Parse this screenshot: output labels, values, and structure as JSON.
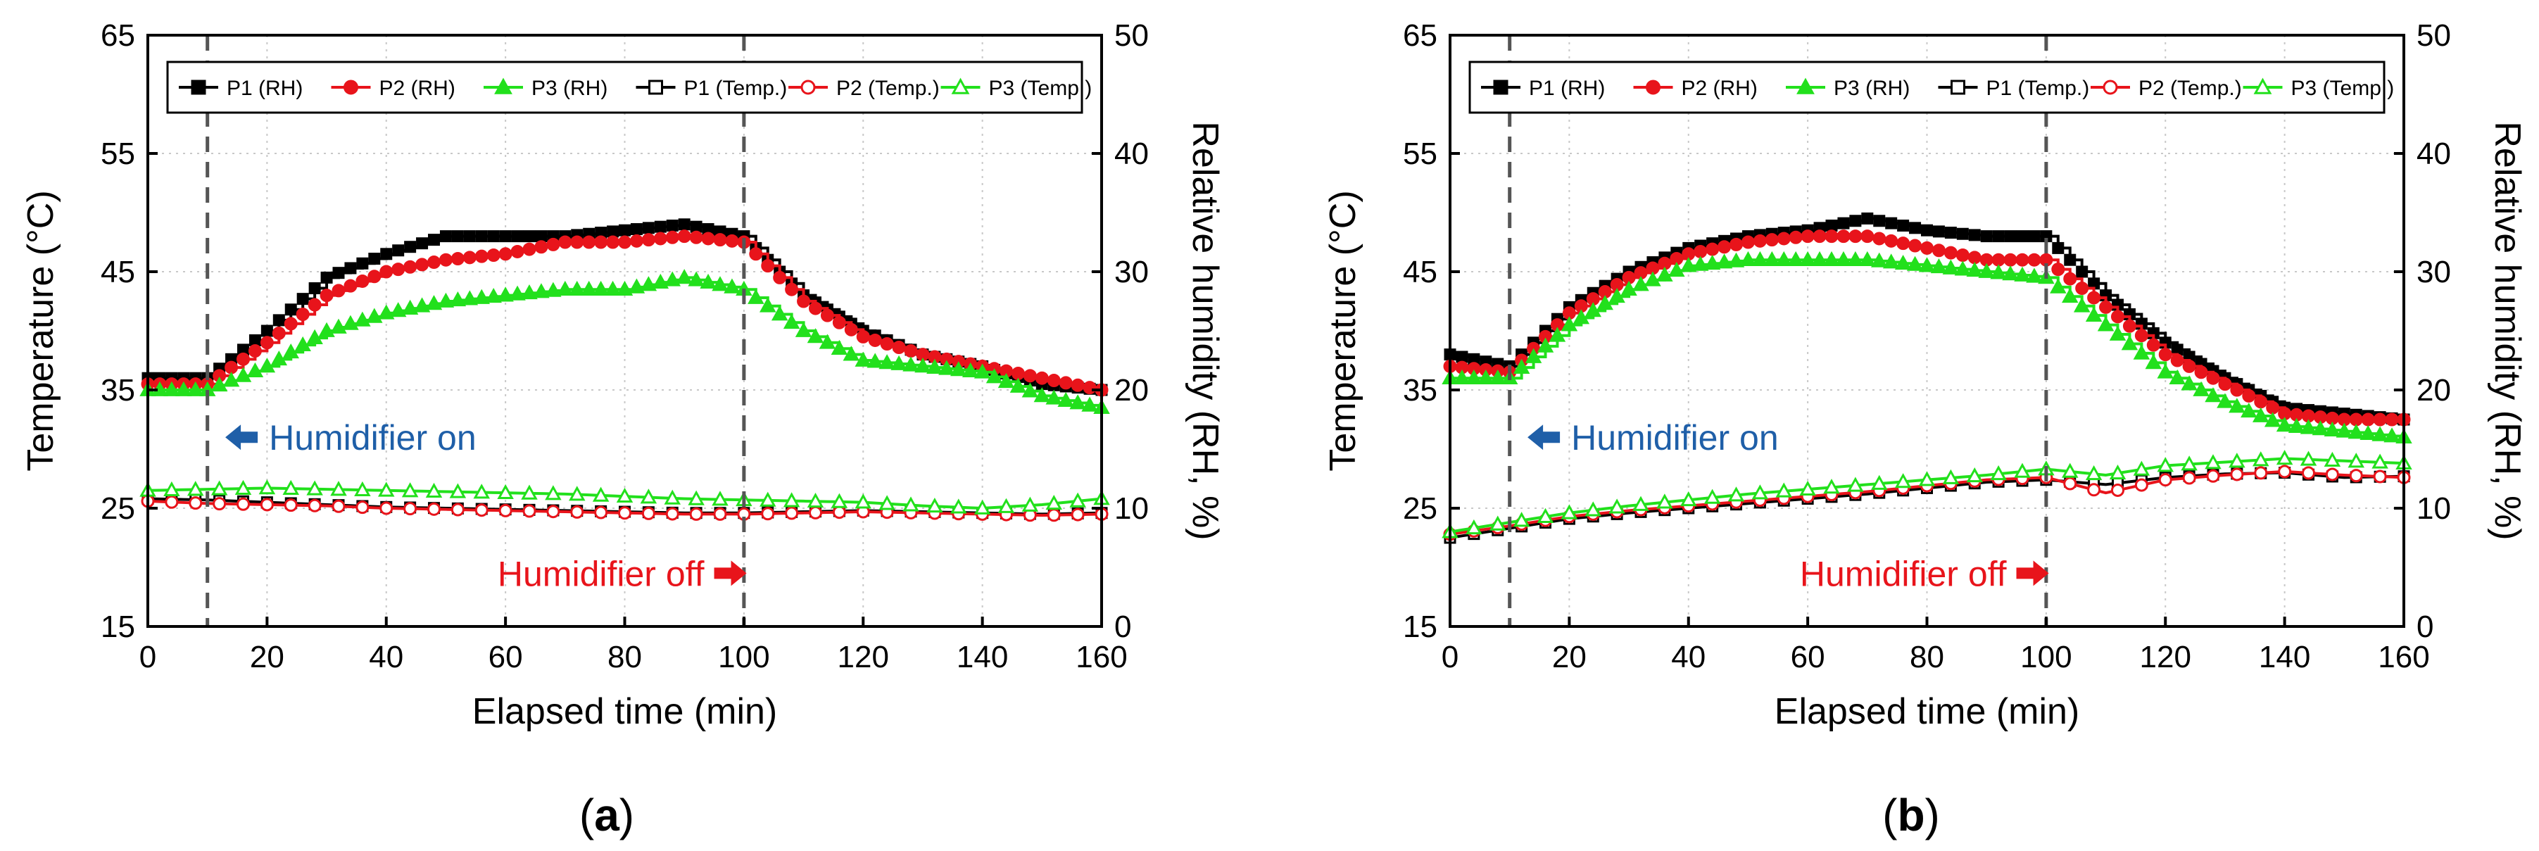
{
  "figure": {
    "captions": [
      "(",
      "a",
      ")",
      "(",
      "b",
      ")"
    ]
  },
  "chart_data": [
    {
      "type": "line",
      "panel": "(a)",
      "xlabel": "Elapsed time (min)",
      "ylabel_left": "Temperature (°C)",
      "ylabel_right": "Relative humidity (RH, %)",
      "xlim": [
        0,
        160
      ],
      "ylim_left": [
        15,
        65
      ],
      "ylim_right": [
        0,
        50
      ],
      "xticks": [
        0,
        20,
        40,
        60,
        80,
        100,
        120,
        140,
        160
      ],
      "yticks_left": [
        15,
        25,
        35,
        45,
        55,
        65
      ],
      "yticks_right": [
        0,
        10,
        20,
        30,
        40,
        50
      ],
      "grid": true,
      "legend": [
        "P1 (RH)",
        "P2 (RH)",
        "P3 (RH)",
        "P1 (Temp.)",
        "P2 (Temp.)",
        "P3 (Temp.)"
      ],
      "vlines": [
        10,
        100
      ],
      "annotations": [
        {
          "text": "Humidifier on",
          "arrow": "left",
          "x": 13,
          "y_temp": 31,
          "color": "#1f5fa8"
        },
        {
          "text": "Humidifier off",
          "arrow": "right",
          "x": 95,
          "y_temp": 19.5,
          "color": "#e8141b"
        }
      ],
      "x": [
        0,
        10,
        20,
        30,
        40,
        50,
        60,
        70,
        80,
        90,
        100,
        110,
        120,
        130,
        140,
        150,
        160
      ],
      "series": [
        {
          "name": "P1 (RH)",
          "axis": "right",
          "color": "#000000",
          "marker": "square",
          "fill": true,
          "step": true,
          "values": [
            21,
            21,
            25,
            29.5,
            31.5,
            33,
            33,
            33,
            33.5,
            34,
            33,
            28,
            25,
            23,
            22,
            20.5,
            20
          ]
        },
        {
          "name": "P2 (RH)",
          "axis": "right",
          "color": "#e8141b",
          "marker": "circle",
          "fill": true,
          "step": true,
          "values": [
            20.5,
            20.5,
            24,
            28,
            30,
            31,
            31.5,
            32.5,
            32.5,
            33,
            32.5,
            27.5,
            24.5,
            23,
            22,
            21,
            20
          ]
        },
        {
          "name": "P3 (RH)",
          "axis": "right",
          "color": "#22e01c",
          "marker": "triangle",
          "fill": true,
          "step": true,
          "values": [
            20,
            20,
            22,
            25,
            26.5,
            27.5,
            28,
            28.5,
            28.5,
            29.5,
            28.5,
            25,
            22.5,
            22,
            21.5,
            19.5,
            18.5
          ]
        },
        {
          "name": "P1 (Temp.)",
          "axis": "left",
          "color": "#000000",
          "marker": "square",
          "fill": false,
          "step": false,
          "values": [
            25.8,
            25.7,
            25.5,
            25.3,
            25.1,
            25.0,
            24.9,
            24.8,
            24.7,
            24.6,
            24.6,
            24.7,
            24.8,
            24.7,
            24.6,
            24.5,
            24.6
          ]
        },
        {
          "name": "P2 (Temp.)",
          "axis": "left",
          "color": "#e8141b",
          "marker": "circle",
          "fill": false,
          "step": false,
          "values": [
            25.6,
            25.4,
            25.3,
            25.2,
            25.0,
            24.9,
            24.8,
            24.7,
            24.6,
            24.5,
            24.5,
            24.6,
            24.7,
            24.6,
            24.5,
            24.4,
            24.5
          ]
        },
        {
          "name": "P3 (Temp.)",
          "axis": "left",
          "color": "#22e01c",
          "marker": "triangle",
          "fill": false,
          "step": false,
          "values": [
            26.5,
            26.6,
            26.7,
            26.6,
            26.5,
            26.4,
            26.3,
            26.2,
            26.0,
            25.8,
            25.7,
            25.6,
            25.5,
            25.2,
            25.0,
            25.3,
            25.8
          ]
        }
      ]
    },
    {
      "type": "line",
      "panel": "(b)",
      "xlabel": "Elapsed time (min)",
      "ylabel_left": "Temperature (°C)",
      "ylabel_right": "Relative humidity (RH, %)",
      "xlim": [
        0,
        160
      ],
      "ylim_left": [
        15,
        65
      ],
      "ylim_right": [
        0,
        50
      ],
      "xticks": [
        0,
        20,
        40,
        60,
        80,
        100,
        120,
        140,
        160
      ],
      "yticks_left": [
        15,
        25,
        35,
        45,
        55,
        65
      ],
      "yticks_right": [
        0,
        10,
        20,
        30,
        40,
        50
      ],
      "grid": true,
      "legend": [
        "P1 (RH)",
        "P2 (RH)",
        "P3 (RH)",
        "P1 (Temp.)",
        "P2 (Temp.)",
        "P3 (Temp.)"
      ],
      "vlines": [
        10,
        100
      ],
      "annotations": [
        {
          "text": "Humidifier on",
          "arrow": "left",
          "x": 13,
          "y_temp": 31,
          "color": "#1f5fa8"
        },
        {
          "text": "Humidifier off",
          "arrow": "right",
          "x": 95,
          "y_temp": 19.5,
          "color": "#e8141b"
        }
      ],
      "x": [
        0,
        10,
        20,
        30,
        40,
        50,
        60,
        70,
        80,
        90,
        100,
        110,
        120,
        130,
        140,
        150,
        160
      ],
      "series": [
        {
          "name": "P1 (RH)",
          "axis": "right",
          "color": "#000000",
          "marker": "square",
          "fill": true,
          "step": true,
          "values": [
            23,
            22,
            27,
            30,
            32,
            33,
            33.5,
            34.5,
            33.5,
            33,
            33,
            28,
            24,
            21,
            18.5,
            18,
            17.5
          ]
        },
        {
          "name": "P2 (RH)",
          "axis": "right",
          "color": "#e8141b",
          "marker": "circle",
          "fill": true,
          "step": true,
          "values": [
            22,
            21.5,
            26.5,
            29.5,
            31.5,
            32.5,
            33,
            33,
            32,
            31,
            31,
            27,
            23,
            20.5,
            18,
            17.5,
            17.5
          ]
        },
        {
          "name": "P3 (RH)",
          "axis": "right",
          "color": "#22e01c",
          "marker": "triangle",
          "fill": true,
          "step": true,
          "values": [
            21,
            21,
            25.5,
            28.5,
            30.5,
            31,
            31,
            31,
            30.5,
            30,
            29.5,
            25.5,
            21.5,
            19,
            17,
            16.5,
            16
          ]
        },
        {
          "name": "P1 (Temp.)",
          "axis": "left",
          "color": "#000000",
          "marker": "square",
          "fill": false,
          "step": false,
          "values": [
            22.5,
            23.3,
            24.1,
            24.6,
            25.0,
            25.4,
            25.8,
            26.2,
            26.7,
            27.2,
            27.4,
            27.0,
            27.6,
            27.9,
            28.0,
            27.6,
            27.7
          ]
        },
        {
          "name": "P2 (Temp.)",
          "axis": "left",
          "color": "#e8141b",
          "marker": "circle",
          "fill": false,
          "step": false,
          "values": [
            22.8,
            23.5,
            24.3,
            24.8,
            25.2,
            25.6,
            26.0,
            26.4,
            26.9,
            27.4,
            27.6,
            26.3,
            27.4,
            27.8,
            28.1,
            27.8,
            27.6
          ]
        },
        {
          "name": "P3 (Temp.)",
          "axis": "left",
          "color": "#22e01c",
          "marker": "triangle",
          "fill": false,
          "step": false,
          "values": [
            23.0,
            23.8,
            24.6,
            25.2,
            25.7,
            26.2,
            26.6,
            27.0,
            27.4,
            27.8,
            28.3,
            27.8,
            28.6,
            28.9,
            29.2,
            29.0,
            28.8
          ]
        }
      ]
    }
  ]
}
